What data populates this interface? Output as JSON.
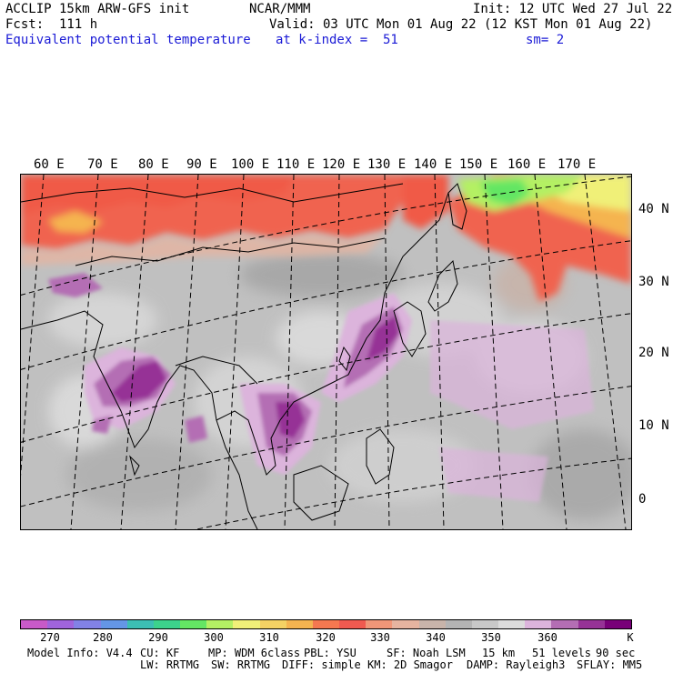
{
  "header": {
    "model": "ACCLIP 15km ARW-GFS init",
    "org": "NCAR/MMM",
    "init": "Init: 12 UTC Wed 27 Jul 22",
    "fcst": "Fcst:  111 h",
    "valid": "Valid: 03 UTC Mon 01 Aug 22 (12 KST Mon 01 Aug 22)",
    "field": "Equivalent potential temperature",
    "level": "at k-index =  51",
    "smooth": "sm= 2"
  },
  "longitude_labels": [
    "60 E",
    "70 E",
    "80 E",
    "90 E",
    "100 E",
    "110 E",
    "120 E",
    "130 E",
    "140 E",
    "150 E",
    "160 E",
    "170 E"
  ],
  "latitude_labels": [
    "40 N",
    "30 N",
    "20 N",
    "10 N",
    "0"
  ],
  "colorbar": {
    "colors": [
      "#c85ac8",
      "#a064dc",
      "#8282e6",
      "#6496e6",
      "#3cbeb4",
      "#3cd28c",
      "#64e664",
      "#b4f064",
      "#f0f078",
      "#f5d264",
      "#f5b450",
      "#f57850",
      "#f05a50",
      "#f09678",
      "#e6b4a0",
      "#c8b4aa",
      "#b4b4b4",
      "#c8c8c8",
      "#dcdcdc",
      "#dcb4dc",
      "#b46eb4",
      "#963296",
      "#780078"
    ],
    "tick_labels": [
      "270",
      "280",
      "290",
      "300",
      "310",
      "320",
      "330",
      "340",
      "350",
      "360"
    ],
    "unit": "K"
  },
  "footer": {
    "line1": [
      "Model Info: V4.4",
      "CU: KF",
      "MP: WDM 6class",
      "PBL: YSU",
      "SF: Noah LSM",
      "15 km",
      "51 levels",
      "90 sec"
    ],
    "line2": [
      "LW: RRTMG",
      "SW: RRTMG",
      "DIFF: simple",
      "KM: 2D Smagor",
      "DAMP: Rayleigh3",
      "SFLAY: MM5"
    ]
  }
}
